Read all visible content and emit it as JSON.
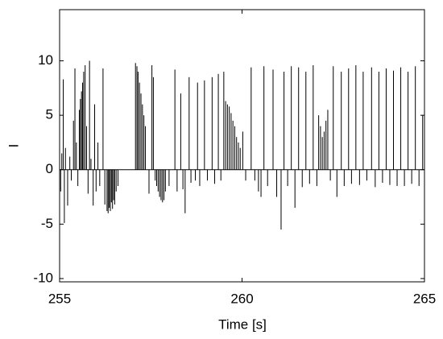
{
  "chart_data": {
    "type": "stem",
    "xlabel": "Time [s]",
    "ylabel": "I",
    "color": "#000000",
    "xlim": [
      255,
      265
    ],
    "xticks": [
      255,
      260,
      265
    ],
    "ylim": [
      -10.3,
      14.7
    ],
    "yticks": [
      -10,
      -5,
      0,
      5,
      10
    ],
    "x": [
      255.0,
      255.03,
      255.06,
      255.1,
      255.13,
      255.16,
      255.22,
      255.28,
      255.32,
      255.38,
      255.42,
      255.46,
      255.5,
      255.54,
      255.57,
      255.6,
      255.63,
      255.66,
      255.7,
      255.74,
      255.78,
      255.82,
      255.86,
      255.92,
      255.96,
      256.0,
      256.05,
      256.1,
      256.19,
      256.24,
      256.3,
      256.33,
      256.36,
      256.39,
      256.42,
      256.45,
      256.48,
      256.51,
      256.55,
      256.6,
      257.08,
      257.12,
      257.15,
      257.19,
      257.23,
      257.27,
      257.31,
      257.35,
      257.45,
      257.53,
      257.57,
      257.62,
      257.66,
      257.7,
      257.74,
      257.78,
      257.82,
      257.86,
      257.9,
      258.0,
      258.16,
      258.22,
      258.32,
      258.38,
      258.44,
      258.55,
      258.6,
      258.72,
      258.78,
      258.84,
      258.97,
      259.05,
      259.18,
      259.25,
      259.35,
      259.42,
      259.5,
      259.55,
      259.6,
      259.65,
      259.7,
      259.75,
      259.8,
      259.85,
      259.9,
      259.95,
      260.02,
      260.1,
      260.25,
      260.35,
      260.45,
      260.52,
      260.6,
      260.7,
      260.85,
      260.95,
      261.07,
      261.15,
      261.25,
      261.35,
      261.45,
      261.55,
      261.65,
      261.75,
      261.85,
      261.95,
      262.05,
      262.1,
      262.15,
      262.2,
      262.25,
      262.3,
      262.35,
      262.42,
      262.5,
      262.6,
      262.72,
      262.8,
      262.92,
      263.0,
      263.12,
      263.22,
      263.32,
      263.42,
      263.55,
      263.65,
      263.75,
      263.85,
      263.95,
      264.05,
      264.15,
      264.25,
      264.35,
      264.45,
      264.55,
      264.65,
      264.75,
      264.85,
      264.95
    ],
    "values": [
      -3.5,
      -2,
      1.5,
      8.3,
      -4.9,
      2,
      -3.3,
      1.2,
      -1,
      4.5,
      9.3,
      2.5,
      -1.5,
      5.5,
      6.5,
      7.2,
      8,
      9,
      9.6,
      4,
      -2.2,
      10,
      1,
      -3.3,
      6,
      -2,
      2.5,
      -1.5,
      9.3,
      -3.2,
      -3.8,
      -4,
      -3.5,
      -3.8,
      -3,
      -3.6,
      -2.8,
      -3.2,
      -2,
      -1.5,
      9.8,
      9.5,
      9,
      8,
      7,
      6,
      5,
      4,
      -2.2,
      9.6,
      8.5,
      -1,
      -1.5,
      -2,
      -2.5,
      -2.8,
      -3,
      -2.8,
      -2,
      -1.5,
      9.2,
      -2,
      7,
      -1.8,
      -4,
      8.5,
      -1.2,
      -1,
      8,
      -1.5,
      8.2,
      -1,
      8.5,
      -1.3,
      8.8,
      -1,
      9,
      6.3,
      6,
      5.8,
      5.2,
      4.5,
      4,
      3,
      2.5,
      2,
      3.5,
      -1,
      9.4,
      -1,
      -2,
      -2.5,
      9.5,
      -1.5,
      9.2,
      -2.5,
      -5.5,
      9,
      -1.5,
      9.5,
      -3.5,
      9.4,
      -1.6,
      9,
      -1.3,
      9.6,
      -1.5,
      5,
      4,
      3,
      3.5,
      4.5,
      5.5,
      -1,
      9.5,
      -2.5,
      9,
      -1.5,
      9.3,
      -1.3,
      9.6,
      -1.4,
      9,
      -1,
      9.4,
      -1.6,
      9,
      -1.2,
      9.3,
      -1.4,
      9.1,
      -1.5,
      9.4,
      -1.5,
      9,
      -1.3,
      9.5,
      -1.5,
      5
    ]
  }
}
